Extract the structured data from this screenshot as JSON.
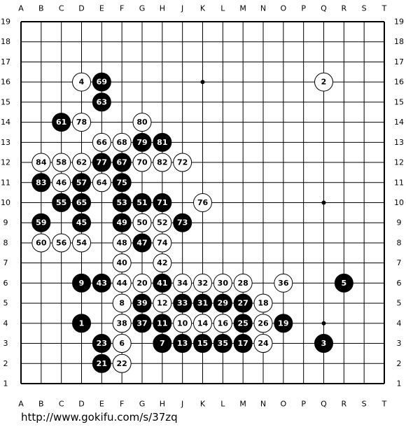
{
  "board": {
    "columns": [
      "A",
      "B",
      "C",
      "D",
      "E",
      "F",
      "G",
      "H",
      "J",
      "K",
      "L",
      "M",
      "N",
      "O",
      "P",
      "Q",
      "R",
      "S",
      "T"
    ],
    "rows": [
      1,
      2,
      3,
      4,
      5,
      6,
      7,
      8,
      9,
      10,
      11,
      12,
      13,
      14,
      15,
      16,
      17,
      18,
      19
    ],
    "stones": [
      {
        "move": 1,
        "point": "D4",
        "color": "black"
      },
      {
        "move": 2,
        "point": "Q16",
        "color": "white"
      },
      {
        "move": 3,
        "point": "Q3",
        "color": "black"
      },
      {
        "move": 4,
        "point": "D16",
        "color": "white"
      },
      {
        "move": 5,
        "point": "R6",
        "color": "black"
      },
      {
        "move": 6,
        "point": "F3",
        "color": "white"
      },
      {
        "move": 7,
        "point": "H3",
        "color": "black"
      },
      {
        "move": 8,
        "point": "F5",
        "color": "white"
      },
      {
        "move": 9,
        "point": "D6",
        "color": "black"
      },
      {
        "move": 10,
        "point": "J4",
        "color": "white"
      },
      {
        "move": 11,
        "point": "H4",
        "color": "black"
      },
      {
        "move": 12,
        "point": "H5",
        "color": "white"
      },
      {
        "move": 13,
        "point": "J3",
        "color": "black"
      },
      {
        "move": 14,
        "point": "K4",
        "color": "white"
      },
      {
        "move": 15,
        "point": "K3",
        "color": "black"
      },
      {
        "move": 16,
        "point": "L4",
        "color": "white"
      },
      {
        "move": 17,
        "point": "M3",
        "color": "black"
      },
      {
        "move": 18,
        "point": "N5",
        "color": "white"
      },
      {
        "move": 19,
        "point": "O4",
        "color": "black"
      },
      {
        "move": 20,
        "point": "G6",
        "color": "white"
      },
      {
        "move": 21,
        "point": "E2",
        "color": "black"
      },
      {
        "move": 22,
        "point": "F2",
        "color": "white"
      },
      {
        "move": 23,
        "point": "E3",
        "color": "black"
      },
      {
        "move": 24,
        "point": "N3",
        "color": "white"
      },
      {
        "move": 25,
        "point": "M4",
        "color": "black"
      },
      {
        "move": 26,
        "point": "N4",
        "color": "white"
      },
      {
        "move": 27,
        "point": "M5",
        "color": "black"
      },
      {
        "move": 28,
        "point": "M6",
        "color": "white"
      },
      {
        "move": 29,
        "point": "L5",
        "color": "black"
      },
      {
        "move": 30,
        "point": "L6",
        "color": "white"
      },
      {
        "move": 31,
        "point": "K5",
        "color": "black"
      },
      {
        "move": 32,
        "point": "K6",
        "color": "white"
      },
      {
        "move": 33,
        "point": "J5",
        "color": "black"
      },
      {
        "move": 34,
        "point": "J6",
        "color": "white"
      },
      {
        "move": 35,
        "point": "L3",
        "color": "black"
      },
      {
        "move": 36,
        "point": "O6",
        "color": "white"
      },
      {
        "move": 37,
        "point": "G4",
        "color": "black"
      },
      {
        "move": 38,
        "point": "F4",
        "color": "white"
      },
      {
        "move": 39,
        "point": "G5",
        "color": "black"
      },
      {
        "move": 40,
        "point": "F7",
        "color": "white"
      },
      {
        "move": 41,
        "point": "H6",
        "color": "black"
      },
      {
        "move": 42,
        "point": "H7",
        "color": "white"
      },
      {
        "move": 43,
        "point": "E6",
        "color": "black"
      },
      {
        "move": 44,
        "point": "F6",
        "color": "white"
      },
      {
        "move": 45,
        "point": "D9",
        "color": "black"
      },
      {
        "move": 46,
        "point": "C11",
        "color": "white"
      },
      {
        "move": 47,
        "point": "G8",
        "color": "black"
      },
      {
        "move": 48,
        "point": "F8",
        "color": "white"
      },
      {
        "move": 49,
        "point": "F9",
        "color": "black"
      },
      {
        "move": 50,
        "point": "G9",
        "color": "white"
      },
      {
        "move": 51,
        "point": "G10",
        "color": "black"
      },
      {
        "move": 52,
        "point": "H9",
        "color": "white"
      },
      {
        "move": 53,
        "point": "F10",
        "color": "black"
      },
      {
        "move": 54,
        "point": "D8",
        "color": "white"
      },
      {
        "move": 55,
        "point": "C10",
        "color": "black"
      },
      {
        "move": 56,
        "point": "C8",
        "color": "white"
      },
      {
        "move": 57,
        "point": "D11",
        "color": "black"
      },
      {
        "move": 58,
        "point": "C12",
        "color": "white"
      },
      {
        "move": 59,
        "point": "B9",
        "color": "black"
      },
      {
        "move": 60,
        "point": "B8",
        "color": "white"
      },
      {
        "move": 61,
        "point": "C14",
        "color": "black"
      },
      {
        "move": 62,
        "point": "D12",
        "color": "white"
      },
      {
        "move": 63,
        "point": "E15",
        "color": "black"
      },
      {
        "move": 64,
        "point": "E11",
        "color": "white"
      },
      {
        "move": 65,
        "point": "D10",
        "color": "black"
      },
      {
        "move": 66,
        "point": "E13",
        "color": "white"
      },
      {
        "move": 67,
        "point": "F12",
        "color": "black"
      },
      {
        "move": 68,
        "point": "F13",
        "color": "white"
      },
      {
        "move": 69,
        "point": "E16",
        "color": "black"
      },
      {
        "move": 70,
        "point": "G12",
        "color": "white"
      },
      {
        "move": 71,
        "point": "H10",
        "color": "black"
      },
      {
        "move": 72,
        "point": "J12",
        "color": "white"
      },
      {
        "move": 73,
        "point": "J9",
        "color": "black"
      },
      {
        "move": 74,
        "point": "H8",
        "color": "white"
      },
      {
        "move": 75,
        "point": "F11",
        "color": "black"
      },
      {
        "move": 76,
        "point": "K10",
        "color": "white"
      },
      {
        "move": 77,
        "point": "E12",
        "color": "black"
      },
      {
        "move": 78,
        "point": "D14",
        "color": "white"
      },
      {
        "move": 79,
        "point": "G13",
        "color": "black"
      },
      {
        "move": 80,
        "point": "G14",
        "color": "white"
      },
      {
        "move": 81,
        "point": "H13",
        "color": "black"
      },
      {
        "move": 82,
        "point": "H12",
        "color": "white"
      },
      {
        "move": 83,
        "point": "B11",
        "color": "black"
      },
      {
        "move": 84,
        "point": "B12",
        "color": "white"
      }
    ]
  },
  "footer": {
    "url": "http://www.gokifu.com/s/37zq"
  }
}
